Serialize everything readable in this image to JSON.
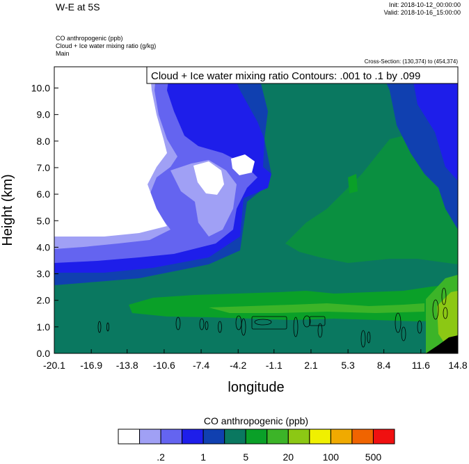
{
  "header": {
    "title": "W-E at 5S",
    "init": "Init: 2018-10-12_00:00:00",
    "valid": "Valid: 2018-10-16_15:00:00",
    "field1": "CO anthropogenic   (ppb)",
    "field2": "Cloud + Ice water mixing ratio   (g/kg)",
    "field3": "Main",
    "cross_section": "Cross-Section: (130,374) to (454,374)"
  },
  "chart_data": {
    "type": "heatmap",
    "contour_label": "Cloud + Ice water mixing ratio Contours: .001 to .1 by .099",
    "xlabel": "longitude",
    "ylabel": "Height (km)",
    "xlim": [
      -20.1,
      14.8
    ],
    "ylim": [
      0.0,
      10.8
    ],
    "xticks": [
      "-20.1",
      "-16.9",
      "-13.8",
      "-10.6",
      "-7.4",
      "-4.2",
      "-1.1",
      "2.1",
      "5.3",
      "8.4",
      "11.6",
      "14.8"
    ],
    "yticks": [
      "0.0",
      "1.0",
      "2.0",
      "3.0",
      "4.0",
      "5.0",
      "6.0",
      "7.0",
      "8.0",
      "9.0",
      "10.0"
    ],
    "colorbar": {
      "title": "CO anthropogenic  (ppb)",
      "colors": [
        "#ffffff",
        "#a0a0f5",
        "#6464f0",
        "#1e1eea",
        "#1040b0",
        "#0a7860",
        "#0aa028",
        "#3cb428",
        "#8cc814",
        "#f0f000",
        "#f0aa00",
        "#f06400",
        "#f01010"
      ],
      "labels": [
        ".2",
        "1",
        "5",
        "20",
        "100",
        "500"
      ]
    }
  }
}
